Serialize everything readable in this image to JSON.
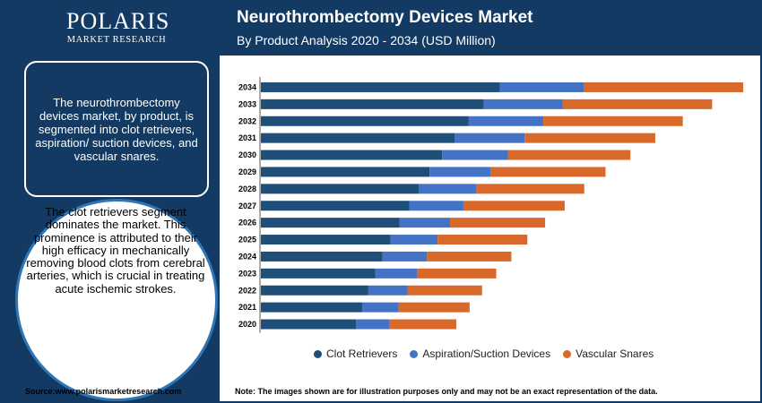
{
  "header": {
    "logo_name": "POLARIS",
    "logo_sub": "MARKET RESEARCH",
    "title": "Neurothrombectomy Devices Market",
    "subtitle": "By Product Analysis 2020 - 2034 (USD Million)"
  },
  "sidebar": {
    "box_text": "The neurothrombectomy devices market, by product, is segmented into clot retrievers, aspiration/ suction devices, and vascular snares.",
    "circle_text": "The clot retrievers segment dominates the market. This prominence is attributed to their high efficacy in mechanically removing blood clots from cerebral arteries, which is crucial in treating acute ischemic strokes."
  },
  "footer": {
    "source": "Source:www.polarismarketresearch.com",
    "note": "Note: The images shown are for illustration purposes only and may not be an exact representation of the data."
  },
  "colors": {
    "header_bg": "#123a63",
    "clot_retrievers": "#1f4e79",
    "aspiration": "#4472c4",
    "vascular_snares": "#d9692a"
  },
  "chart_data": {
    "type": "bar",
    "orientation": "horizontal",
    "stacked": true,
    "categories": [
      "2034",
      "2033",
      "2032",
      "2031",
      "2030",
      "2029",
      "2028",
      "2027",
      "2026",
      "2025",
      "2024",
      "2023",
      "2022",
      "2021",
      "2020"
    ],
    "series": [
      {
        "name": "Clot Retrievers",
        "color": "#1f4e79",
        "values": [
          269,
          251,
          234,
          218,
          204,
          190,
          178,
          167,
          156,
          146,
          137,
          129,
          121,
          114,
          107
        ]
      },
      {
        "name": "Aspiration/Suction Devices",
        "color": "#4472c4",
        "values": [
          95,
          89,
          84,
          79,
          74,
          69,
          65,
          61,
          57,
          53,
          50,
          47,
          44,
          41,
          38
        ]
      },
      {
        "name": "Vascular Snares",
        "color": "#d9692a",
        "values": [
          179,
          168,
          157,
          147,
          138,
          129,
          121,
          114,
          107,
          101,
          95,
          89,
          84,
          80,
          75
        ]
      }
    ],
    "xlim": [
      0,
      550
    ],
    "grid": false,
    "legend_position": "bottom"
  }
}
